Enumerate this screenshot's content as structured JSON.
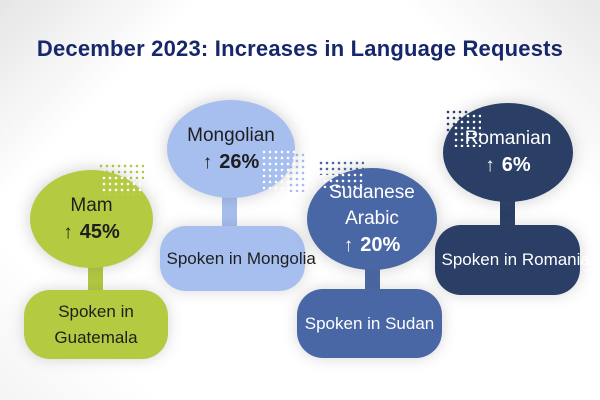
{
  "title": "December 2023: Increases in Language Requests",
  "colors": {
    "title": "#17276b",
    "background": "#ffffff",
    "decor_dot": "#ffffff"
  },
  "chart_data": {
    "type": "infographic",
    "title": "December 2023: Increases in Language Requests",
    "items": [
      {
        "language": "Mam",
        "arrow": "↑",
        "increase_percent": 45,
        "pct_label": "45%",
        "location": "Spoken in Guatemala",
        "color": "#b4ca40",
        "text_color": "#1e1e1e"
      },
      {
        "language": "Mongolian",
        "arrow": "↑",
        "increase_percent": 26,
        "pct_label": "26%",
        "location": "Spoken in Mongolia",
        "color": "#a6bfee",
        "text_color": "#1e1e1e"
      },
      {
        "language": "Sudanese Arabic",
        "arrow": "↑",
        "increase_percent": 20,
        "pct_label": "20%",
        "location": "Spoken in Sudan",
        "color": "#4a67a5",
        "text_color": "#ffffff"
      },
      {
        "language": "Romanian",
        "arrow": "↑",
        "increase_percent": 6,
        "pct_label": "6%",
        "location": "Spoken in Romania",
        "color": "#2a3e66",
        "text_color": "#ffffff"
      }
    ]
  }
}
